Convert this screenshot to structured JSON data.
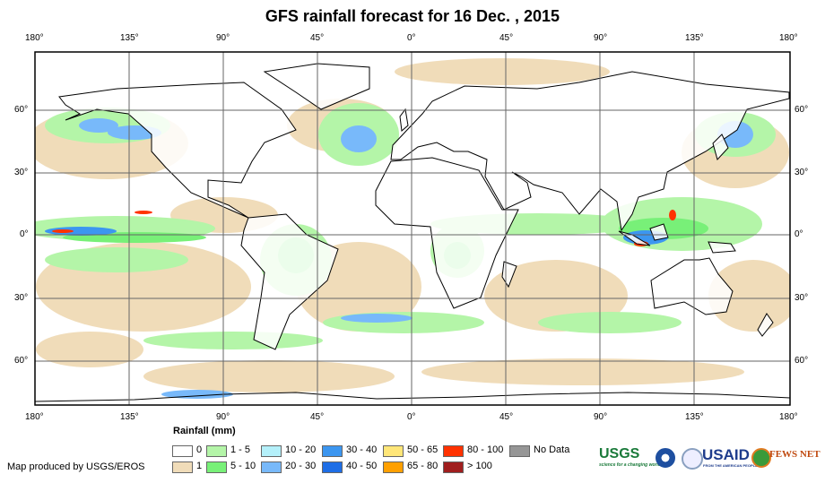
{
  "title": "GFS rainfall forecast for 16 Dec. , 2015",
  "lon_labels": [
    "180°",
    "135°",
    "90°",
    "45°",
    "0°",
    "45°",
    "90°",
    "135°",
    "180°"
  ],
  "lat_labels": [
    "60°",
    "30°",
    "0°",
    "30°",
    "60°"
  ],
  "legend": {
    "title": "Rainfall (mm)",
    "items": [
      {
        "label": "0",
        "color": "#ffffff"
      },
      {
        "label": "1",
        "color": "#f0dcb9"
      },
      {
        "label": "1 - 5",
        "color": "#b4f5a8"
      },
      {
        "label": "5 - 10",
        "color": "#78f078"
      },
      {
        "label": "10 - 20",
        "color": "#b4f0fa"
      },
      {
        "label": "20 - 30",
        "color": "#78b9fa"
      },
      {
        "label": "30 - 40",
        "color": "#3c96f0"
      },
      {
        "label": "40 - 50",
        "color": "#1e6ee6"
      },
      {
        "label": "50 - 65",
        "color": "#ffe678"
      },
      {
        "label": "65 - 80",
        "color": "#ffa000"
      },
      {
        "label": "80 - 100",
        "color": "#ff3200"
      },
      {
        "label": "> 100",
        "color": "#a01e1e"
      },
      {
        "label": "No Data",
        "color": "#969696"
      }
    ]
  },
  "credit": "Map produced by USGS/EROS",
  "logos": {
    "usgs": "USGS",
    "usgs_tag": "science for a changing world",
    "usaid": "USAID",
    "usaid_tag": "FROM THE AMERICAN PEOPLE",
    "fews": "FEWS NET"
  }
}
